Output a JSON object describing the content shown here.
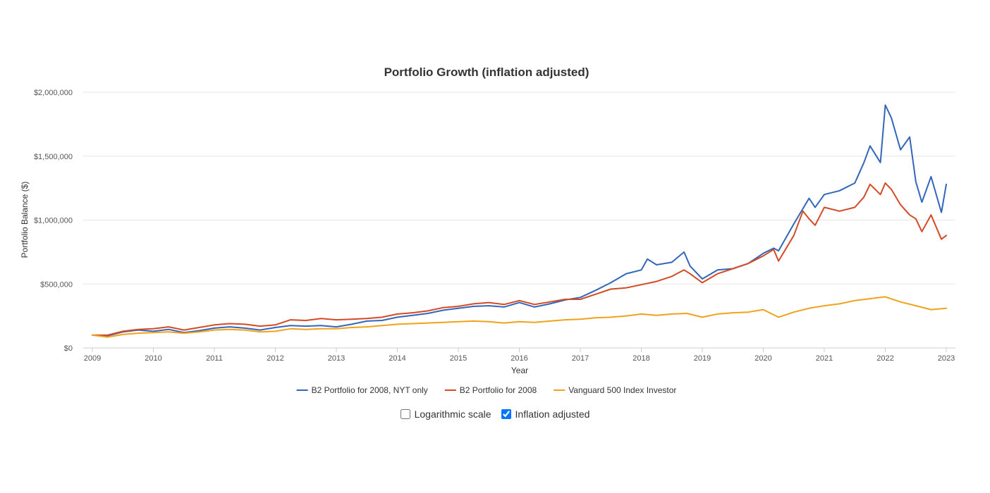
{
  "controls": {
    "log_scale_label": "Logarithmic scale",
    "log_scale_checked": false,
    "inflation_label": "Inflation adjusted",
    "inflation_checked": true
  },
  "chart_data": {
    "type": "line",
    "title": "Portfolio Growth (inflation adjusted)",
    "xlabel": "Year",
    "ylabel": "Portfolio Balance ($)",
    "ylim": [
      0,
      2000000
    ],
    "xlim": [
      2009,
      2023
    ],
    "y_ticks": [
      0,
      500000,
      1000000,
      1500000,
      2000000
    ],
    "y_tick_labels": [
      "$0",
      "$500,000",
      "$1,000,000",
      "$1,500,000",
      "$2,000,000"
    ],
    "x_ticks": [
      2009,
      2010,
      2011,
      2012,
      2013,
      2014,
      2015,
      2016,
      2017,
      2018,
      2019,
      2020,
      2021,
      2022,
      2023
    ],
    "x_tick_labels": [
      "2009",
      "2010",
      "2011",
      "2012",
      "2013",
      "2014",
      "2015",
      "2016",
      "2017",
      "2018",
      "2019",
      "2020",
      "2021",
      "2022",
      "2023"
    ],
    "grid": true,
    "legend_position": "bottom",
    "series": [
      {
        "name": "B2 Portfolio for 2008, NYT only",
        "color": "#3366bb",
        "x": [
          2009,
          2009.25,
          2009.5,
          2009.75,
          2010,
          2010.25,
          2010.5,
          2010.75,
          2011,
          2011.25,
          2011.5,
          2011.75,
          2012,
          2012.25,
          2012.5,
          2012.75,
          2013,
          2013.25,
          2013.5,
          2013.75,
          2014,
          2014.25,
          2014.5,
          2014.75,
          2015,
          2015.25,
          2015.5,
          2015.75,
          2016,
          2016.25,
          2016.5,
          2016.75,
          2017,
          2017.25,
          2017.5,
          2017.75,
          2018,
          2018.1,
          2018.25,
          2018.5,
          2018.7,
          2018.8,
          2019,
          2019.25,
          2019.5,
          2019.75,
          2020,
          2020.17,
          2020.25,
          2020.5,
          2020.75,
          2020.85,
          2021,
          2021.25,
          2021.5,
          2021.65,
          2021.75,
          2021.92,
          2022,
          2022.1,
          2022.25,
          2022.4,
          2022.5,
          2022.6,
          2022.75,
          2022.92,
          2023
        ],
        "values": [
          100000,
          95000,
          125000,
          140000,
          130000,
          145000,
          120000,
          135000,
          155000,
          165000,
          155000,
          140000,
          160000,
          175000,
          170000,
          175000,
          165000,
          185000,
          210000,
          215000,
          240000,
          255000,
          270000,
          295000,
          310000,
          325000,
          330000,
          320000,
          355000,
          320000,
          345000,
          375000,
          395000,
          450000,
          510000,
          580000,
          610000,
          695000,
          650000,
          670000,
          750000,
          640000,
          540000,
          610000,
          620000,
          660000,
          740000,
          780000,
          760000,
          970000,
          1170000,
          1100000,
          1200000,
          1230000,
          1290000,
          1450000,
          1580000,
          1450000,
          1900000,
          1800000,
          1550000,
          1650000,
          1300000,
          1140000,
          1340000,
          1060000,
          1280000
        ]
      },
      {
        "name": "B2 Portfolio for 2008",
        "color": "#d24a26",
        "x": [
          2009,
          2009.25,
          2009.5,
          2009.75,
          2010,
          2010.25,
          2010.5,
          2010.75,
          2011,
          2011.25,
          2011.5,
          2011.75,
          2012,
          2012.25,
          2012.5,
          2012.75,
          2013,
          2013.25,
          2013.5,
          2013.75,
          2014,
          2014.25,
          2014.5,
          2014.75,
          2015,
          2015.25,
          2015.5,
          2015.75,
          2016,
          2016.25,
          2016.5,
          2016.75,
          2017,
          2017.25,
          2017.5,
          2017.75,
          2018,
          2018.25,
          2018.5,
          2018.7,
          2018.8,
          2019,
          2019.25,
          2019.5,
          2019.75,
          2020,
          2020.17,
          2020.25,
          2020.5,
          2020.65,
          2020.75,
          2020.85,
          2021,
          2021.25,
          2021.5,
          2021.65,
          2021.75,
          2021.92,
          2022,
          2022.1,
          2022.25,
          2022.4,
          2022.5,
          2022.6,
          2022.75,
          2022.92,
          2023
        ],
        "values": [
          100000,
          100000,
          130000,
          145000,
          150000,
          165000,
          140000,
          160000,
          180000,
          190000,
          185000,
          170000,
          180000,
          220000,
          215000,
          230000,
          220000,
          225000,
          230000,
          240000,
          265000,
          275000,
          290000,
          315000,
          325000,
          345000,
          355000,
          340000,
          370000,
          340000,
          360000,
          380000,
          380000,
          420000,
          460000,
          470000,
          495000,
          520000,
          560000,
          610000,
          580000,
          510000,
          580000,
          620000,
          660000,
          720000,
          770000,
          680000,
          880000,
          1070000,
          1010000,
          960000,
          1100000,
          1070000,
          1100000,
          1180000,
          1280000,
          1200000,
          1290000,
          1240000,
          1120000,
          1040000,
          1010000,
          910000,
          1040000,
          850000,
          880000
        ]
      },
      {
        "name": "Vanguard 500 Index Investor",
        "color": "#f0a21a",
        "x": [
          2009,
          2009.25,
          2009.5,
          2009.75,
          2010,
          2010.25,
          2010.5,
          2010.75,
          2011,
          2011.25,
          2011.5,
          2011.75,
          2012,
          2012.25,
          2012.5,
          2012.75,
          2013,
          2013.25,
          2013.5,
          2013.75,
          2014,
          2014.25,
          2014.5,
          2014.75,
          2015,
          2015.25,
          2015.5,
          2015.75,
          2016,
          2016.25,
          2016.5,
          2016.75,
          2017,
          2017.25,
          2017.5,
          2017.75,
          2018,
          2018.25,
          2018.5,
          2018.75,
          2019,
          2019.25,
          2019.5,
          2019.75,
          2020,
          2020.25,
          2020.5,
          2020.75,
          2021,
          2021.25,
          2021.5,
          2021.75,
          2022,
          2022.25,
          2022.5,
          2022.75,
          2023
        ],
        "values": [
          100000,
          85000,
          105000,
          115000,
          120000,
          125000,
          115000,
          125000,
          140000,
          145000,
          140000,
          125000,
          130000,
          150000,
          145000,
          150000,
          150000,
          160000,
          165000,
          175000,
          185000,
          190000,
          195000,
          200000,
          205000,
          210000,
          205000,
          195000,
          205000,
          200000,
          210000,
          220000,
          225000,
          235000,
          240000,
          250000,
          265000,
          255000,
          265000,
          270000,
          240000,
          265000,
          275000,
          280000,
          300000,
          240000,
          280000,
          310000,
          330000,
          345000,
          370000,
          385000,
          400000,
          360000,
          330000,
          300000,
          310000
        ]
      }
    ]
  }
}
